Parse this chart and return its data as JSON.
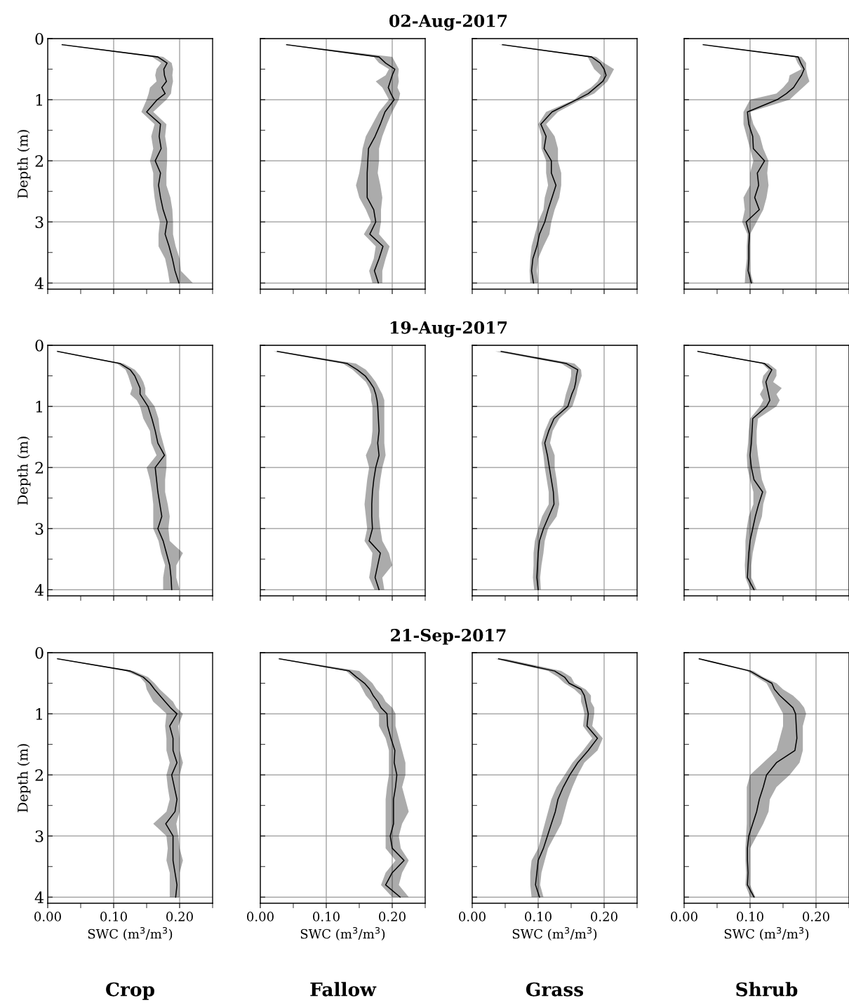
{
  "chart_data": [
    {
      "type": "line",
      "orientation": "horizontal",
      "ylabel": "Depth (m)",
      "tick_labels": "y",
      "grid": true,
      "xlim": [
        0,
        0.25
      ],
      "ylim": [
        4.1,
        0
      ],
      "xticks": [
        0,
        {
          "value": 0.05,
          "label": null
        },
        0.1,
        {
          "value": 0.15,
          "label": null
        },
        0.2,
        {
          "value": 0.25,
          "label": null
        }
      ],
      "yticks": [
        0,
        {
          "value": 0.5,
          "label": null
        },
        1,
        {
          "value": 1.5,
          "label": null
        },
        2,
        {
          "value": 2.5,
          "label": null
        },
        3,
        {
          "value": 3.5,
          "label": null
        },
        4
      ],
      "x": [
        0.1,
        0.3,
        0.4,
        0.5,
        0.6,
        0.7,
        0.8,
        0.9,
        1,
        1.2,
        1.4,
        1.6,
        1.8,
        2,
        2.2,
        2.4,
        2.6,
        2.8,
        3,
        3.2,
        3.4,
        3.6,
        3.8,
        4
      ],
      "series": [
        {
          "color": "#000000",
          "values": [
            0.022,
            0.167,
            0.181,
            0.176,
            0.177,
            0.18,
            0.173,
            0.178,
            0.166,
            0.15,
            0.171,
            0.169,
            0.172,
            0.163,
            0.171,
            0.168,
            0.171,
            0.175,
            0.181,
            0.178,
            0.184,
            0.189,
            0.193,
            0.199
          ],
          "lower": [
            0.018,
            0.158,
            0.172,
            0.165,
            0.163,
            0.165,
            0.155,
            0.153,
            0.15,
            0.142,
            0.162,
            0.157,
            0.16,
            0.155,
            0.16,
            0.16,
            0.162,
            0.165,
            0.17,
            0.168,
            0.168,
            0.178,
            0.182,
            0.185
          ],
          "upper": [
            0.026,
            0.175,
            0.188,
            0.19,
            0.189,
            0.19,
            0.188,
            0.187,
            0.18,
            0.16,
            0.18,
            0.178,
            0.181,
            0.181,
            0.18,
            0.18,
            0.186,
            0.189,
            0.19,
            0.19,
            0.194,
            0.2,
            0.202,
            0.22
          ]
        }
      ]
    },
    {
      "type": "line",
      "orientation": "horizontal",
      "tick_labels": false,
      "grid": true,
      "xlim": [
        0,
        0.25
      ],
      "ylim": [
        4.1,
        0
      ],
      "xticks": [
        0,
        {
          "value": 0.05,
          "label": null
        },
        0.1,
        {
          "value": 0.15,
          "label": null
        },
        0.2,
        {
          "value": 0.25,
          "label": null
        }
      ],
      "yticks": [
        0,
        {
          "value": 0.5,
          "label": null
        },
        1,
        {
          "value": 1.5,
          "label": null
        },
        2,
        {
          "value": 2.5,
          "label": null
        },
        3,
        {
          "value": 3.5,
          "label": null
        },
        4
      ],
      "x": [
        0.1,
        0.3,
        0.4,
        0.5,
        0.6,
        0.7,
        0.8,
        0.9,
        1,
        1.2,
        1.4,
        1.6,
        1.8,
        2,
        2.2,
        2.4,
        2.6,
        2.8,
        3,
        3.2,
        3.4,
        3.6,
        3.8,
        4
      ],
      "series": [
        {
          "color": "#000000",
          "values": [
            0.04,
            0.18,
            0.19,
            0.204,
            0.2,
            0.197,
            0.194,
            0.198,
            0.203,
            0.189,
            0.182,
            0.174,
            0.164,
            0.163,
            0.162,
            0.162,
            0.162,
            0.172,
            0.175,
            0.166,
            0.186,
            0.18,
            0.173,
            0.179
          ],
          "lower": [
            0.036,
            0.172,
            0.18,
            0.195,
            0.19,
            0.175,
            0.185,
            0.19,
            0.195,
            0.18,
            0.17,
            0.16,
            0.155,
            0.153,
            0.15,
            0.145,
            0.15,
            0.16,
            0.168,
            0.157,
            0.175,
            0.172,
            0.165,
            0.17
          ],
          "upper": [
            0.044,
            0.2,
            0.205,
            0.21,
            0.209,
            0.21,
            0.208,
            0.212,
            0.21,
            0.2,
            0.192,
            0.185,
            0.18,
            0.18,
            0.178,
            0.182,
            0.185,
            0.183,
            0.183,
            0.18,
            0.196,
            0.19,
            0.185,
            0.185
          ]
        }
      ]
    },
    {
      "type": "line",
      "orientation": "horizontal",
      "tick_labels": false,
      "grid": true,
      "xlim": [
        0,
        0.25
      ],
      "ylim": [
        4.1,
        0
      ],
      "xticks": [
        0,
        {
          "value": 0.05,
          "label": null
        },
        0.1,
        {
          "value": 0.15,
          "label": null
        },
        0.2,
        {
          "value": 0.25,
          "label": null
        }
      ],
      "yticks": [
        0,
        {
          "value": 0.5,
          "label": null
        },
        1,
        {
          "value": 1.5,
          "label": null
        },
        2,
        {
          "value": 2.5,
          "label": null
        },
        3,
        {
          "value": 3.5,
          "label": null
        },
        4
      ],
      "x": [
        0.1,
        0.3,
        0.4,
        0.5,
        0.6,
        0.7,
        0.8,
        0.9,
        1,
        1.2,
        1.4,
        1.6,
        1.8,
        2,
        2.2,
        2.4,
        2.6,
        2.8,
        3,
        3.2,
        3.4,
        3.6,
        3.8,
        4
      ],
      "title": "02-Aug-2017",
      "series": [
        {
          "color": "#000000",
          "values": [
            0.046,
            0.181,
            0.194,
            0.2,
            0.203,
            0.198,
            0.187,
            0.176,
            0.158,
            0.121,
            0.104,
            0.112,
            0.109,
            0.12,
            0.12,
            0.127,
            0.121,
            0.115,
            0.11,
            0.102,
            0.098,
            0.092,
            0.09,
            0.093
          ],
          "lower": [
            0.04,
            0.175,
            0.18,
            0.185,
            0.195,
            0.19,
            0.18,
            0.165,
            0.155,
            0.112,
            0.1,
            0.105,
            0.105,
            0.112,
            0.112,
            0.115,
            0.11,
            0.108,
            0.1,
            0.095,
            0.09,
            0.088,
            0.087,
            0.088
          ],
          "upper": [
            0.05,
            0.188,
            0.2,
            0.215,
            0.21,
            0.205,
            0.195,
            0.185,
            0.165,
            0.13,
            0.112,
            0.125,
            0.13,
            0.13,
            0.135,
            0.135,
            0.132,
            0.125,
            0.12,
            0.117,
            0.108,
            0.1,
            0.098,
            0.1
          ]
        }
      ]
    },
    {
      "type": "line",
      "orientation": "horizontal",
      "tick_labels": false,
      "grid": true,
      "xlim": [
        0,
        0.25
      ],
      "ylim": [
        4.1,
        0
      ],
      "xticks": [
        0,
        {
          "value": 0.05,
          "label": null
        },
        0.1,
        {
          "value": 0.15,
          "label": null
        },
        0.2,
        {
          "value": 0.25,
          "label": null
        }
      ],
      "yticks": [
        0,
        {
          "value": 0.5,
          "label": null
        },
        1,
        {
          "value": 1.5,
          "label": null
        },
        2,
        {
          "value": 2.5,
          "label": null
        },
        3,
        {
          "value": 3.5,
          "label": null
        },
        4
      ],
      "x": [
        0.1,
        0.3,
        0.4,
        0.5,
        0.6,
        0.7,
        0.8,
        0.9,
        1,
        1.2,
        1.4,
        1.6,
        1.8,
        2,
        2.2,
        2.4,
        2.6,
        2.8,
        3,
        3.2,
        3.4,
        3.6,
        3.8,
        4
      ],
      "series": [
        {
          "color": "#000000",
          "values": [
            0.029,
            0.173,
            0.177,
            0.182,
            0.178,
            0.172,
            0.166,
            0.155,
            0.141,
            0.096,
            0.098,
            0.104,
            0.105,
            0.122,
            0.111,
            0.113,
            0.107,
            0.114,
            0.094,
            0.099,
            0.098,
            0.098,
            0.097,
            0.102
          ],
          "lower": [
            0.027,
            0.168,
            0.172,
            0.178,
            0.16,
            0.158,
            0.15,
            0.14,
            0.1,
            0.09,
            0.09,
            0.095,
            0.1,
            0.105,
            0.1,
            0.1,
            0.09,
            0.092,
            0.088,
            0.096,
            0.095,
            0.095,
            0.093,
            0.092
          ],
          "upper": [
            0.031,
            0.178,
            0.185,
            0.185,
            0.187,
            0.19,
            0.18,
            0.17,
            0.16,
            0.1,
            0.105,
            0.115,
            0.12,
            0.128,
            0.126,
            0.128,
            0.125,
            0.12,
            0.11,
            0.1,
            0.1,
            0.1,
            0.1,
            0.105
          ]
        }
      ]
    },
    {
      "type": "line",
      "orientation": "horizontal",
      "ylabel": "Depth (m)",
      "tick_labels": "y",
      "grid": true,
      "xlim": [
        0,
        0.25
      ],
      "ylim": [
        4.1,
        0
      ],
      "xticks": [
        0,
        {
          "value": 0.05,
          "label": null
        },
        0.1,
        {
          "value": 0.15,
          "label": null
        },
        0.2,
        {
          "value": 0.25,
          "label": null
        }
      ],
      "yticks": [
        0,
        {
          "value": 0.5,
          "label": null
        },
        1,
        {
          "value": 1.5,
          "label": null
        },
        2,
        {
          "value": 2.5,
          "label": null
        },
        3,
        {
          "value": 3.5,
          "label": null
        },
        4
      ],
      "x": [
        0.1,
        0.3,
        0.4,
        0.5,
        0.6,
        0.7,
        0.8,
        0.9,
        1,
        1.2,
        1.4,
        1.6,
        1.8,
        2,
        2.2,
        2.4,
        2.6,
        2.8,
        3,
        3.2,
        3.4,
        3.6,
        3.8,
        4
      ],
      "series": [
        {
          "color": "#000000",
          "values": [
            0.015,
            0.11,
            0.125,
            0.132,
            0.136,
            0.14,
            0.14,
            0.146,
            0.152,
            0.158,
            0.163,
            0.167,
            0.177,
            0.163,
            0.165,
            0.167,
            0.17,
            0.173,
            0.167,
            0.175,
            0.18,
            0.185,
            0.187,
            0.188
          ],
          "lower": [
            0.012,
            0.105,
            0.118,
            0.122,
            0.125,
            0.128,
            0.125,
            0.135,
            0.14,
            0.145,
            0.155,
            0.157,
            0.165,
            0.15,
            0.155,
            0.158,
            0.16,
            0.16,
            0.16,
            0.168,
            0.172,
            0.178,
            0.175,
            0.175
          ],
          "upper": [
            0.018,
            0.115,
            0.132,
            0.14,
            0.145,
            0.148,
            0.148,
            0.155,
            0.162,
            0.168,
            0.17,
            0.175,
            0.18,
            0.18,
            0.178,
            0.178,
            0.182,
            0.185,
            0.183,
            0.185,
            0.205,
            0.195,
            0.195,
            0.2
          ]
        }
      ]
    },
    {
      "type": "line",
      "orientation": "horizontal",
      "tick_labels": false,
      "grid": true,
      "xlim": [
        0,
        0.25
      ],
      "ylim": [
        4.1,
        0
      ],
      "xticks": [
        0,
        {
          "value": 0.05,
          "label": null
        },
        0.1,
        {
          "value": 0.15,
          "label": null
        },
        0.2,
        {
          "value": 0.25,
          "label": null
        }
      ],
      "yticks": [
        0,
        {
          "value": 0.5,
          "label": null
        },
        1,
        {
          "value": 1.5,
          "label": null
        },
        2,
        {
          "value": 2.5,
          "label": null
        },
        3,
        {
          "value": 3.5,
          "label": null
        },
        4
      ],
      "x": [
        0.1,
        0.3,
        0.4,
        0.5,
        0.6,
        0.7,
        0.8,
        0.9,
        1,
        1.2,
        1.4,
        1.6,
        1.8,
        2,
        2.2,
        2.4,
        2.6,
        2.8,
        3,
        3.2,
        3.4,
        3.6,
        3.8,
        4
      ],
      "series": [
        {
          "color": "#000000",
          "values": [
            0.026,
            0.132,
            0.147,
            0.159,
            0.166,
            0.172,
            0.175,
            0.177,
            0.178,
            0.179,
            0.18,
            0.178,
            0.18,
            0.175,
            0.172,
            0.17,
            0.169,
            0.169,
            0.17,
            0.165,
            0.182,
            0.178,
            0.174,
            0.18
          ],
          "lower": [
            0.02,
            0.125,
            0.14,
            0.15,
            0.16,
            0.165,
            0.168,
            0.168,
            0.17,
            0.17,
            0.17,
            0.168,
            0.16,
            0.165,
            0.162,
            0.16,
            0.158,
            0.16,
            0.162,
            0.158,
            0.17,
            0.168,
            0.165,
            0.173
          ],
          "upper": [
            0.03,
            0.145,
            0.16,
            0.168,
            0.175,
            0.18,
            0.185,
            0.188,
            0.188,
            0.188,
            0.188,
            0.188,
            0.19,
            0.185,
            0.182,
            0.18,
            0.18,
            0.18,
            0.182,
            0.185,
            0.195,
            0.2,
            0.185,
            0.188
          ]
        }
      ]
    },
    {
      "type": "line",
      "orientation": "horizontal",
      "tick_labels": false,
      "grid": true,
      "xlim": [
        0,
        0.25
      ],
      "ylim": [
        4.1,
        0
      ],
      "xticks": [
        0,
        {
          "value": 0.05,
          "label": null
        },
        0.1,
        {
          "value": 0.15,
          "label": null
        },
        0.2,
        {
          "value": 0.25,
          "label": null
        }
      ],
      "yticks": [
        0,
        {
          "value": 0.5,
          "label": null
        },
        1,
        {
          "value": 1.5,
          "label": null
        },
        2,
        {
          "value": 2.5,
          "label": null
        },
        3,
        {
          "value": 3.5,
          "label": null
        },
        4
      ],
      "x": [
        0.1,
        0.3,
        0.4,
        0.5,
        0.6,
        0.7,
        0.8,
        0.9,
        1,
        1.2,
        1.4,
        1.6,
        1.8,
        2,
        2.2,
        2.4,
        2.6,
        2.8,
        3,
        3.2,
        3.4,
        3.6,
        3.8,
        4
      ],
      "title": "19-Aug-2017",
      "series": [
        {
          "color": "#000000",
          "values": [
            0.044,
            0.143,
            0.16,
            0.158,
            0.157,
            0.155,
            0.151,
            0.148,
            0.145,
            0.124,
            0.116,
            0.11,
            0.114,
            0.117,
            0.12,
            0.123,
            0.124,
            0.116,
            0.108,
            0.102,
            0.1,
            0.099,
            0.098,
            0.1
          ],
          "lower": [
            0.035,
            0.135,
            0.15,
            0.15,
            0.148,
            0.145,
            0.142,
            0.14,
            0.138,
            0.118,
            0.11,
            0.105,
            0.108,
            0.11,
            0.113,
            0.116,
            0.116,
            0.106,
            0.1,
            0.095,
            0.093,
            0.093,
            0.092,
            0.094
          ],
          "upper": [
            0.05,
            0.155,
            0.165,
            0.166,
            0.163,
            0.16,
            0.158,
            0.155,
            0.152,
            0.132,
            0.122,
            0.118,
            0.125,
            0.125,
            0.128,
            0.13,
            0.132,
            0.128,
            0.115,
            0.11,
            0.108,
            0.105,
            0.103,
            0.104
          ]
        }
      ]
    },
    {
      "type": "line",
      "orientation": "horizontal",
      "tick_labels": false,
      "grid": true,
      "xlim": [
        0,
        0.25
      ],
      "ylim": [
        4.1,
        0
      ],
      "xticks": [
        0,
        {
          "value": 0.05,
          "label": null
        },
        0.1,
        {
          "value": 0.15,
          "label": null
        },
        0.2,
        {
          "value": 0.25,
          "label": null
        }
      ],
      "yticks": [
        0,
        {
          "value": 0.5,
          "label": null
        },
        1,
        {
          "value": 1.5,
          "label": null
        },
        2,
        {
          "value": 2.5,
          "label": null
        },
        3,
        {
          "value": 3.5,
          "label": null
        },
        4
      ],
      "x": [
        0.1,
        0.3,
        0.4,
        0.5,
        0.6,
        0.7,
        0.8,
        0.9,
        1,
        1.2,
        1.4,
        1.6,
        1.8,
        2,
        2.2,
        2.4,
        2.6,
        2.8,
        3,
        3.2,
        3.4,
        3.6,
        3.8,
        4
      ],
      "series": [
        {
          "color": "#000000",
          "values": [
            0.021,
            0.122,
            0.133,
            0.128,
            0.124,
            0.126,
            0.128,
            0.13,
            0.125,
            0.104,
            0.103,
            0.102,
            0.1,
            0.102,
            0.106,
            0.119,
            0.113,
            0.108,
            0.104,
            0.1,
            0.098,
            0.097,
            0.096,
            0.106
          ],
          "lower": [
            0.018,
            0.118,
            0.128,
            0.12,
            0.118,
            0.12,
            0.115,
            0.12,
            0.115,
            0.1,
            0.098,
            0.097,
            0.095,
            0.096,
            0.1,
            0.105,
            0.105,
            0.098,
            0.095,
            0.093,
            0.093,
            0.092,
            0.093,
            0.1
          ],
          "upper": [
            0.024,
            0.128,
            0.14,
            0.14,
            0.135,
            0.148,
            0.14,
            0.145,
            0.14,
            0.112,
            0.11,
            0.11,
            0.112,
            0.115,
            0.118,
            0.125,
            0.12,
            0.118,
            0.112,
            0.108,
            0.104,
            0.102,
            0.102,
            0.11
          ]
        }
      ]
    },
    {
      "type": "line",
      "orientation": "horizontal",
      "ylabel": "Depth (m)",
      "xlabel": "SWC (m$^{3}$/m$^{3}$)",
      "annotations": [
        "Crop"
      ],
      "grid": true,
      "xlim": [
        0,
        0.25
      ],
      "ylim": [
        4.1,
        0
      ],
      "xticks": [
        {
          "value": 0,
          "label": "0.00"
        },
        {
          "value": 0.05,
          "label": null
        },
        {
          "value": 0.1,
          "label": "0.10"
        },
        {
          "value": 0.15,
          "label": null
        },
        {
          "value": 0.2,
          "label": "0.20"
        },
        {
          "value": 0.25,
          "label": null
        }
      ],
      "yticks": [
        0,
        {
          "value": 0.5,
          "label": null
        },
        1,
        {
          "value": 1.5,
          "label": null
        },
        2,
        {
          "value": 2.5,
          "label": null
        },
        3,
        {
          "value": 3.5,
          "label": null
        },
        4
      ],
      "x": [
        0.1,
        0.3,
        0.4,
        0.5,
        0.6,
        0.7,
        0.8,
        0.9,
        1,
        1.2,
        1.4,
        1.6,
        1.8,
        2,
        2.2,
        2.4,
        2.6,
        2.8,
        3,
        3.2,
        3.4,
        3.6,
        3.8,
        4
      ],
      "series": [
        {
          "color": "#000000",
          "values": [
            0.015,
            0.125,
            0.145,
            0.155,
            0.162,
            0.17,
            0.178,
            0.186,
            0.196,
            0.185,
            0.19,
            0.19,
            0.196,
            0.188,
            0.192,
            0.196,
            0.193,
            0.179,
            0.19,
            0.19,
            0.19,
            0.193,
            0.196,
            0.194
          ],
          "lower": [
            0.012,
            0.118,
            0.14,
            0.148,
            0.15,
            0.155,
            0.16,
            0.17,
            0.18,
            0.178,
            0.18,
            0.18,
            0.185,
            0.18,
            0.182,
            0.185,
            0.18,
            0.16,
            0.18,
            0.182,
            0.18,
            0.185,
            0.185,
            0.185
          ],
          "upper": [
            0.018,
            0.13,
            0.152,
            0.162,
            0.17,
            0.18,
            0.19,
            0.195,
            0.205,
            0.198,
            0.2,
            0.2,
            0.205,
            0.2,
            0.2,
            0.2,
            0.2,
            0.195,
            0.198,
            0.2,
            0.205,
            0.2,
            0.2,
            0.2
          ]
        }
      ]
    },
    {
      "type": "line",
      "orientation": "horizontal",
      "tick_labels": "x",
      "xlabel": "SWC (m$^{3}$/m$^{3}$)",
      "annotations": [
        "Fallow"
      ],
      "grid": true,
      "xlim": [
        0,
        0.25
      ],
      "ylim": [
        4.1,
        0
      ],
      "xticks": [
        {
          "value": 0,
          "label": "0.00"
        },
        {
          "value": 0.05,
          "label": null
        },
        {
          "value": 0.1,
          "label": "0.10"
        },
        {
          "value": 0.15,
          "label": null
        },
        {
          "value": 0.2,
          "label": "0.20"
        },
        {
          "value": 0.25,
          "label": null
        }
      ],
      "yticks": [
        0,
        {
          "value": 0.5,
          "label": null
        },
        1,
        {
          "value": 1.5,
          "label": null
        },
        2,
        {
          "value": 2.5,
          "label": null
        },
        3,
        {
          "value": 3.5,
          "label": null
        },
        4
      ],
      "x": [
        0.1,
        0.3,
        0.4,
        0.5,
        0.6,
        0.7,
        0.8,
        0.9,
        1,
        1.2,
        1.4,
        1.6,
        1.8,
        2,
        2.2,
        2.4,
        2.6,
        2.8,
        3,
        3.2,
        3.4,
        3.6,
        3.8,
        4
      ],
      "series": [
        {
          "color": "#000000",
          "values": [
            0.029,
            0.135,
            0.146,
            0.158,
            0.166,
            0.171,
            0.178,
            0.183,
            0.192,
            0.193,
            0.198,
            0.204,
            0.203,
            0.207,
            0.205,
            0.202,
            0.202,
            0.202,
            0.197,
            0.2,
            0.218,
            0.2,
            0.19,
            0.212
          ],
          "lower": [
            0.025,
            0.13,
            0.14,
            0.15,
            0.155,
            0.16,
            0.168,
            0.172,
            0.18,
            0.18,
            0.19,
            0.195,
            0.195,
            0.195,
            0.192,
            0.19,
            0.19,
            0.19,
            0.19,
            0.19,
            0.205,
            0.19,
            0.183,
            0.2
          ],
          "upper": [
            0.033,
            0.15,
            0.16,
            0.17,
            0.176,
            0.185,
            0.19,
            0.2,
            0.205,
            0.205,
            0.21,
            0.215,
            0.22,
            0.22,
            0.215,
            0.22,
            0.225,
            0.215,
            0.21,
            0.213,
            0.225,
            0.215,
            0.21,
            0.225
          ]
        }
      ]
    },
    {
      "type": "line",
      "orientation": "horizontal",
      "tick_labels": "x",
      "xlabel": "SWC (m$^{3}$/m$^{3}$)",
      "annotations": [
        "Grass"
      ],
      "grid": true,
      "xlim": [
        0,
        0.25
      ],
      "ylim": [
        4.1,
        0
      ],
      "xticks": [
        {
          "value": 0,
          "label": "0.00"
        },
        {
          "value": 0.05,
          "label": null
        },
        {
          "value": 0.1,
          "label": "0.10"
        },
        {
          "value": 0.15,
          "label": null
        },
        {
          "value": 0.2,
          "label": "0.20"
        },
        {
          "value": 0.25,
          "label": null
        }
      ],
      "yticks": [
        0,
        {
          "value": 0.5,
          "label": null
        },
        1,
        {
          "value": 1.5,
          "label": null
        },
        2,
        {
          "value": 2.5,
          "label": null
        },
        3,
        {
          "value": 3.5,
          "label": null
        },
        4
      ],
      "x": [
        0.1,
        0.3,
        0.4,
        0.5,
        0.6,
        0.7,
        0.8,
        0.9,
        1,
        1.2,
        1.4,
        1.6,
        1.8,
        2,
        2.2,
        2.4,
        2.6,
        2.8,
        3,
        3.2,
        3.4,
        3.6,
        3.8,
        4
      ],
      "title": "21-Sep-2017",
      "series": [
        {
          "color": "#000000",
          "values": [
            0.04,
            0.125,
            0.14,
            0.147,
            0.165,
            0.17,
            0.172,
            0.174,
            0.176,
            0.174,
            0.19,
            0.176,
            0.16,
            0.148,
            0.138,
            0.13,
            0.126,
            0.12,
            0.114,
            0.108,
            0.1,
            0.098,
            0.096,
            0.102
          ],
          "lower": [
            0.035,
            0.115,
            0.13,
            0.14,
            0.155,
            0.165,
            0.165,
            0.168,
            0.17,
            0.168,
            0.182,
            0.168,
            0.152,
            0.14,
            0.128,
            0.12,
            0.115,
            0.11,
            0.105,
            0.1,
            0.09,
            0.088,
            0.088,
            0.09
          ],
          "upper": [
            0.05,
            0.135,
            0.15,
            0.155,
            0.172,
            0.18,
            0.18,
            0.185,
            0.185,
            0.182,
            0.198,
            0.19,
            0.17,
            0.16,
            0.152,
            0.145,
            0.14,
            0.135,
            0.125,
            0.115,
            0.11,
            0.105,
            0.103,
            0.108
          ]
        }
      ]
    },
    {
      "type": "line",
      "orientation": "horizontal",
      "tick_labels": "x",
      "xlabel": "SWC (m$^{3}$/m$^{3}$)",
      "annotations": [
        "Shrub"
      ],
      "grid": true,
      "xlim": [
        0,
        0.25
      ],
      "ylim": [
        4.1,
        0
      ],
      "xticks": [
        {
          "value": 0,
          "label": "0.00"
        },
        {
          "value": 0.05,
          "label": null
        },
        {
          "value": 0.1,
          "label": "0.10"
        },
        {
          "value": 0.15,
          "label": null
        },
        {
          "value": 0.2,
          "label": "0.20"
        },
        {
          "value": 0.25,
          "label": null
        }
      ],
      "yticks": [
        0,
        {
          "value": 0.5,
          "label": null
        },
        1,
        {
          "value": 1.5,
          "label": null
        },
        2,
        {
          "value": 2.5,
          "label": null
        },
        3,
        {
          "value": 3.5,
          "label": null
        },
        4
      ],
      "x": [
        0.1,
        0.3,
        0.4,
        0.5,
        0.6,
        0.7,
        0.8,
        0.9,
        1,
        1.2,
        1.4,
        1.6,
        1.8,
        2,
        2.2,
        2.4,
        2.6,
        2.8,
        3,
        3.2,
        3.4,
        3.6,
        3.8,
        4
      ],
      "series": [
        {
          "color": "#000000",
          "values": [
            0.023,
            0.1,
            0.116,
            0.133,
            0.137,
            0.145,
            0.155,
            0.165,
            0.169,
            0.17,
            0.171,
            0.168,
            0.14,
            0.125,
            0.12,
            0.114,
            0.11,
            0.104,
            0.098,
            0.096,
            0.096,
            0.097,
            0.096,
            0.106
          ],
          "lower": [
            0.02,
            0.095,
            0.11,
            0.125,
            0.13,
            0.135,
            0.14,
            0.145,
            0.15,
            0.15,
            0.145,
            0.14,
            0.12,
            0.1,
            0.095,
            0.095,
            0.095,
            0.095,
            0.094,
            0.093,
            0.093,
            0.094,
            0.093,
            0.1
          ],
          "upper": [
            0.026,
            0.105,
            0.12,
            0.14,
            0.15,
            0.165,
            0.175,
            0.182,
            0.185,
            0.18,
            0.18,
            0.18,
            0.175,
            0.16,
            0.14,
            0.13,
            0.128,
            0.12,
            0.11,
            0.1,
            0.1,
            0.1,
            0.1,
            0.108
          ]
        }
      ]
    }
  ]
}
